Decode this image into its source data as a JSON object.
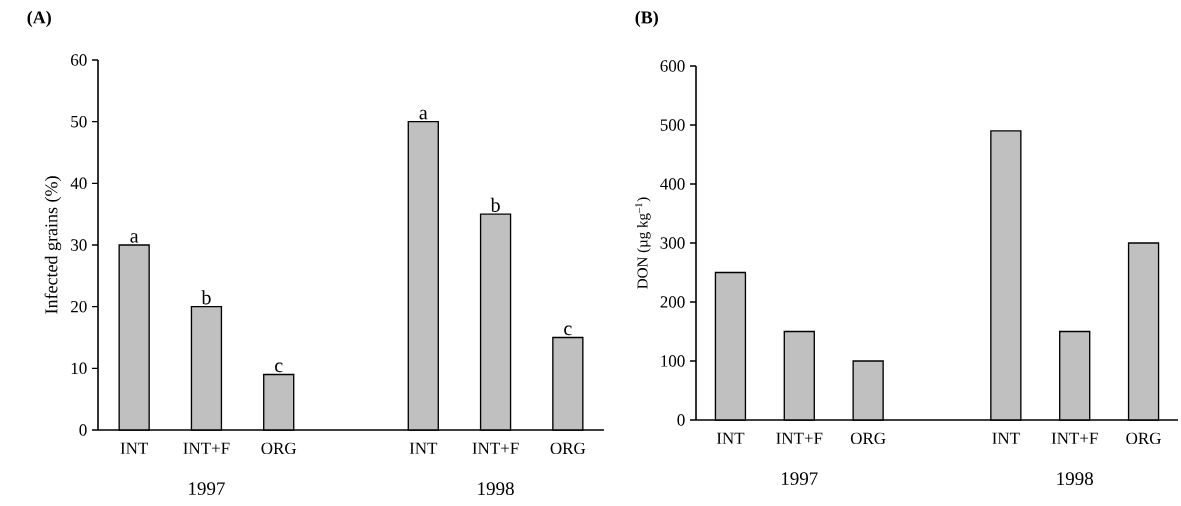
{
  "chart_data": [
    {
      "type": "bar",
      "title": "(A)",
      "ylabel": "Infected grains (%)",
      "categories": [
        "INT",
        "INT+F",
        "ORG",
        null,
        "INT",
        "INT+F",
        "ORG"
      ],
      "values": [
        30,
        20,
        9,
        null,
        50,
        35,
        15
      ],
      "value_labels": [
        "a",
        "b",
        "c",
        null,
        "a",
        "b",
        "c"
      ],
      "color": "#c0c0c0",
      "ylim": [
        0,
        60
      ],
      "yticks": [
        0,
        10,
        20,
        30,
        40,
        50,
        60
      ],
      "annotations": [
        "1997",
        "1998"
      ]
    },
    {
      "type": "bar",
      "title": "(B)",
      "ylabel": "DON (µg kg$^{–1}$)",
      "categories": [
        "INT",
        "INT+F",
        "ORG",
        null,
        "INT",
        "INT+F",
        "ORG"
      ],
      "values": [
        250,
        150,
        100,
        null,
        490,
        150,
        300
      ],
      "color": "#c0c0c0",
      "ylim": [
        0,
        600
      ],
      "yticks": [
        0,
        100,
        200,
        300,
        400,
        500,
        600
      ],
      "annotations": [
        "1997",
        "1998"
      ]
    }
  ]
}
